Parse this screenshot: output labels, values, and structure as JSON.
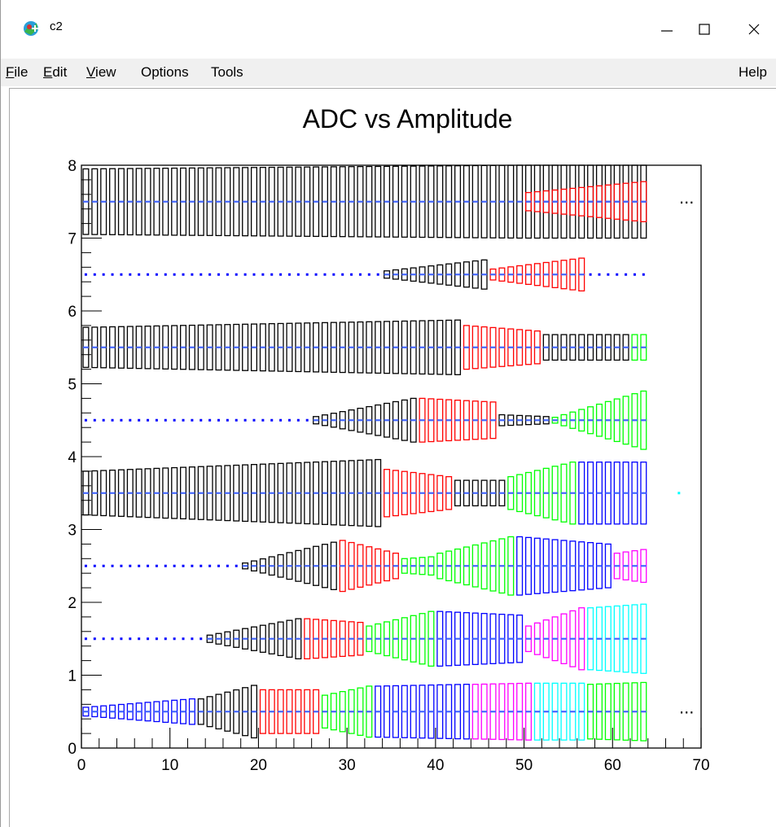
{
  "window": {
    "title": "c2",
    "controls": {
      "minimize": "minimize",
      "maximize": "maximize",
      "close": "close"
    }
  },
  "menu": {
    "items": [
      {
        "mnemonic": "F",
        "rest": "ile"
      },
      {
        "mnemonic": "E",
        "rest": "dit"
      },
      {
        "mnemonic": "V",
        "rest": "iew"
      },
      {
        "mnemonic": "",
        "rest": "Options"
      },
      {
        "mnemonic": "",
        "rest": "Tools"
      }
    ],
    "help": "Help"
  },
  "chart_data": {
    "type": "box",
    "title": "ADC vs Amplitude",
    "xlabel": "",
    "ylabel": "",
    "xlim": [
      0,
      70
    ],
    "ylim": [
      0,
      8
    ],
    "x_ticks": [
      "0",
      "10",
      "20",
      "30",
      "40",
      "50",
      "60",
      "70"
    ],
    "y_ticks": [
      "0",
      "1",
      "2",
      "3",
      "4",
      "5",
      "6",
      "7",
      "8"
    ],
    "grid": false,
    "overflow_markers": [
      {
        "text": "...",
        "y": 7.5
      },
      {
        "text": "...",
        "y": 0.5
      }
    ],
    "extra_point": {
      "x": 67.5,
      "y": 3.5,
      "color": "cyan"
    },
    "colors": {
      "black": "#000000",
      "red": "#ff0000",
      "green": "#00ff00",
      "blue": "#0000ff",
      "magenta": "#ff00ff",
      "cyan": "#00ffff"
    },
    "x_range": [
      0,
      64
    ],
    "center_dot_color": "#4466ff",
    "rows": [
      {
        "y": 0.5,
        "segments": [
          {
            "from": 0,
            "to": 13,
            "color": "blue",
            "width": [
              0.12,
              0.35
            ]
          },
          {
            "from": 13,
            "to": 20,
            "color": "black",
            "width": [
              0.35,
              0.72
            ]
          },
          {
            "from": 20,
            "to": 27,
            "color": "red",
            "width": [
              0.6,
              0.6
            ]
          },
          {
            "from": 27,
            "to": 33,
            "color": "green",
            "width": [
              0.45,
              0.7
            ]
          },
          {
            "from": 33,
            "to": 44,
            "color": "blue",
            "width": [
              0.7,
              0.75
            ]
          },
          {
            "from": 44,
            "to": 51,
            "color": "magenta",
            "width": [
              0.75,
              0.78
            ]
          },
          {
            "from": 51,
            "to": 57,
            "color": "cyan",
            "width": [
              0.78,
              0.78
            ]
          },
          {
            "from": 57,
            "to": 64,
            "color": "green",
            "width": [
              0.75,
              0.8
            ]
          }
        ]
      },
      {
        "y": 1.5,
        "segments": [
          {
            "from": 0,
            "to": 14,
            "color": "blue",
            "width": [
              0.03,
              0.05
            ]
          },
          {
            "from": 14,
            "to": 25,
            "color": "black",
            "width": [
              0.1,
              0.55
            ]
          },
          {
            "from": 25,
            "to": 32,
            "color": "red",
            "width": [
              0.55,
              0.45
            ]
          },
          {
            "from": 32,
            "to": 40,
            "color": "green",
            "width": [
              0.35,
              0.75
            ]
          },
          {
            "from": 40,
            "to": 50,
            "color": "blue",
            "width": [
              0.75,
              0.65
            ]
          },
          {
            "from": 50,
            "to": 57,
            "color": "magenta",
            "width": [
              0.35,
              0.85
            ]
          },
          {
            "from": 57,
            "to": 64,
            "color": "cyan",
            "width": [
              0.85,
              0.95
            ]
          }
        ]
      },
      {
        "y": 2.5,
        "segments": [
          {
            "from": 0,
            "to": 18,
            "color": "blue",
            "width": [
              0.03,
              0.05
            ]
          },
          {
            "from": 18,
            "to": 29,
            "color": "black",
            "width": [
              0.08,
              0.65
            ]
          },
          {
            "from": 29,
            "to": 36,
            "color": "red",
            "width": [
              0.7,
              0.35
            ]
          },
          {
            "from": 36,
            "to": 40,
            "color": "green",
            "width": [
              0.2,
              0.25
            ]
          },
          {
            "from": 40,
            "to": 49,
            "color": "green",
            "width": [
              0.35,
              0.8
            ]
          },
          {
            "from": 49,
            "to": 60,
            "color": "blue",
            "width": [
              0.8,
              0.6
            ]
          },
          {
            "from": 60,
            "to": 64,
            "color": "magenta",
            "width": [
              0.35,
              0.45
            ]
          }
        ]
      },
      {
        "y": 3.5,
        "segments": [
          {
            "from": 0,
            "to": 34,
            "color": "black",
            "width": [
              0.6,
              0.92
            ]
          },
          {
            "from": 34,
            "to": 42,
            "color": "red",
            "width": [
              0.65,
              0.45
            ]
          },
          {
            "from": 42,
            "to": 48,
            "color": "black",
            "width": [
              0.35,
              0.35
            ]
          },
          {
            "from": 48,
            "to": 56,
            "color": "green",
            "width": [
              0.45,
              0.85
            ]
          },
          {
            "from": 56,
            "to": 64,
            "color": "blue",
            "width": [
              0.85,
              0.85
            ]
          }
        ]
      },
      {
        "y": 4.5,
        "segments": [
          {
            "from": 0,
            "to": 26,
            "color": "blue",
            "width": [
              0.03,
              0.06
            ]
          },
          {
            "from": 26,
            "to": 38,
            "color": "black",
            "width": [
              0.1,
              0.6
            ]
          },
          {
            "from": 38,
            "to": 47,
            "color": "red",
            "width": [
              0.6,
              0.5
            ]
          },
          {
            "from": 47,
            "to": 53,
            "color": "black",
            "width": [
              0.15,
              0.1
            ]
          },
          {
            "from": 53,
            "to": 64,
            "color": "green",
            "width": [
              0.08,
              0.8
            ]
          }
        ]
      },
      {
        "y": 5.5,
        "segments": [
          {
            "from": 0,
            "to": 43,
            "color": "black",
            "width": [
              0.55,
              0.75
            ]
          },
          {
            "from": 43,
            "to": 52,
            "color": "red",
            "width": [
              0.6,
              0.45
            ]
          },
          {
            "from": 52,
            "to": 62,
            "color": "black",
            "width": [
              0.35,
              0.35
            ]
          },
          {
            "from": 62,
            "to": 64,
            "color": "green",
            "width": [
              0.35,
              0.35
            ]
          }
        ]
      },
      {
        "y": 6.5,
        "segments": [
          {
            "from": 0,
            "to": 34,
            "color": "blue",
            "width": [
              0.03,
              0.04
            ]
          },
          {
            "from": 34,
            "to": 46,
            "color": "black",
            "width": [
              0.1,
              0.4
            ]
          },
          {
            "from": 46,
            "to": 57,
            "color": "red",
            "width": [
              0.15,
              0.45
            ]
          },
          {
            "from": 57,
            "to": 64,
            "color": "blue",
            "width": [
              0.05,
              0.03
            ]
          }
        ]
      },
      {
        "y": 7.5,
        "segments": [
          {
            "from": 0,
            "to": 50,
            "color": "black",
            "width": [
              0.9,
              1.0
            ]
          },
          {
            "from": 50,
            "to": 64,
            "color": "black",
            "width": [
              1.0,
              1.0
            ]
          },
          {
            "from": 50,
            "to": 64,
            "color": "red",
            "width": [
              0.25,
              0.55
            ]
          }
        ]
      }
    ]
  }
}
